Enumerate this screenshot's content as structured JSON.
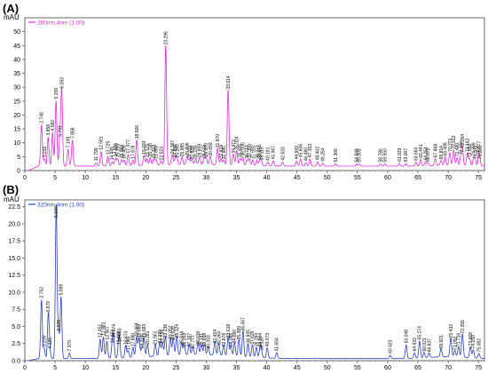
{
  "panel_labels": {
    "a": "(A)",
    "b": "(B)"
  },
  "chart_data": [
    {
      "type": "line",
      "panel": "(A)",
      "ylabel": "mAU",
      "legend": "280nm,4nm (1.00)",
      "color": "#e02ce0",
      "xlim": [
        0,
        76
      ],
      "ylim": [
        0,
        55
      ],
      "xticks": [
        0,
        5,
        10,
        15,
        20,
        25,
        30,
        35,
        40,
        45,
        50,
        55,
        60,
        65,
        70,
        75
      ],
      "yticks": [
        0,
        5,
        10,
        15,
        20,
        25,
        30,
        35,
        40,
        45,
        50
      ],
      "baseline": 1.6,
      "peaks": [
        {
          "t": 2.748,
          "h": 14.8,
          "label": "2.748"
        },
        {
          "t": 3.232,
          "h": 2.5,
          "label": "3.232"
        },
        {
          "t": 3.858,
          "h": 10.4,
          "label": "3.858"
        },
        {
          "t": 4.582,
          "h": 12.0,
          "label": "4.582"
        },
        {
          "t": 5.159,
          "h": 23.5,
          "label": "5.159"
        },
        {
          "t": 5.791,
          "h": 10.0,
          "label": "5.791"
        },
        {
          "t": 6.093,
          "h": 27.3,
          "label": "6.093"
        },
        {
          "t": 7.149,
          "h": 6.0,
          "label": "7.149"
        },
        {
          "t": 7.858,
          "h": 9.3,
          "label": "7.858"
        },
        {
          "t": 11.799,
          "h": 1.2,
          "label": "11.799"
        },
        {
          "t": 12.591,
          "h": 5.2,
          "label": "12.591"
        },
        {
          "t": 13.725,
          "h": 3.5,
          "label": "13.725"
        },
        {
          "t": 14.445,
          "h": 1.5,
          "label": "14.445"
        },
        {
          "t": 14.965,
          "h": 2.8,
          "label": "14.965"
        },
        {
          "t": 15.355,
          "h": 2.5,
          "label": "15.355"
        },
        {
          "t": 15.994,
          "h": 2.2,
          "label": "15.994"
        },
        {
          "t": 16.409,
          "h": 2.0,
          "label": "16.409"
        },
        {
          "t": 17.077,
          "h": 4.0,
          "label": "17.077"
        },
        {
          "t": 17.878,
          "h": 2.0,
          "label": "17.878"
        },
        {
          "t": 18.506,
          "h": 9.2,
          "label": "18.506"
        },
        {
          "t": 19.693,
          "h": 3.6,
          "label": "19.693"
        },
        {
          "t": 20.175,
          "h": 2.5,
          "label": "20.175"
        },
        {
          "t": 20.726,
          "h": 2.8,
          "label": "20.726"
        },
        {
          "t": 21.313,
          "h": 2.2,
          "label": "21.313"
        },
        {
          "t": 21.68,
          "h": 2.0,
          "label": "21.680"
        },
        {
          "t": 22.523,
          "h": 1.5,
          "label": "22.523"
        },
        {
          "t": 23.296,
          "h": 43.0,
          "label": "23.296"
        },
        {
          "t": 24.367,
          "h": 3.8,
          "label": "24.367"
        },
        {
          "t": 24.856,
          "h": 2.4,
          "label": "24.856"
        },
        {
          "t": 25.16,
          "h": 2.4,
          "label": "25.160"
        },
        {
          "t": 25.985,
          "h": 2.8,
          "label": "25.985"
        },
        {
          "t": 26.806,
          "h": 3.0,
          "label": "26.806"
        },
        {
          "t": 27.222,
          "h": 2.0,
          "label": "27.222"
        },
        {
          "t": 27.639,
          "h": 1.8,
          "label": "27.639"
        },
        {
          "t": 28.23,
          "h": 2.0,
          "label": "28.230"
        },
        {
          "t": 28.859,
          "h": 2.5,
          "label": "28.859"
        },
        {
          "t": 29.615,
          "h": 2.2,
          "label": "29.615"
        },
        {
          "t": 29.97,
          "h": 2.8,
          "label": "29.970"
        },
        {
          "t": 30.659,
          "h": 3.0,
          "label": "30.659"
        },
        {
          "t": 31.87,
          "h": 6.0,
          "label": "31.870"
        },
        {
          "t": 32.424,
          "h": 2.2,
          "label": "32.424"
        },
        {
          "t": 32.886,
          "h": 1.8,
          "label": "32.886"
        },
        {
          "t": 33.614,
          "h": 27.0,
          "label": "33.614"
        },
        {
          "t": 34.473,
          "h": 4.0,
          "label": "34.473"
        },
        {
          "t": 35.024,
          "h": 5.2,
          "label": "35.024"
        },
        {
          "t": 35.605,
          "h": 2.5,
          "label": "35.605"
        },
        {
          "t": 36.03,
          "h": 3.0,
          "label": "36.030"
        },
        {
          "t": 36.717,
          "h": 2.0,
          "label": "36.717"
        },
        {
          "t": 37.105,
          "h": 2.5,
          "label": "37.105"
        },
        {
          "t": 37.68,
          "h": 2.0,
          "label": "37.680"
        },
        {
          "t": 38.373,
          "h": 2.0,
          "label": "38.373"
        },
        {
          "t": 38.854,
          "h": 2.2,
          "label": "38.854"
        },
        {
          "t": 39.113,
          "h": 1.5,
          "label": "39.113"
        },
        {
          "t": 40.191,
          "h": 1.3,
          "label": "40.191"
        },
        {
          "t": 41.067,
          "h": 1.8,
          "label": "41.067"
        },
        {
          "t": 42.633,
          "h": 1.4,
          "label": "42.633"
        },
        {
          "t": 44.943,
          "h": 1.8,
          "label": "44.943"
        },
        {
          "t": 45.606,
          "h": 2.5,
          "label": "45.606"
        },
        {
          "t": 46.48,
          "h": 1.2,
          "label": "46.480"
        },
        {
          "t": 47.153,
          "h": 2.5,
          "label": "47.153"
        },
        {
          "t": 48.402,
          "h": 1.5,
          "label": "48.402"
        },
        {
          "t": 49.254,
          "h": 1.0,
          "label": "49.254"
        },
        {
          "t": 51.366,
          "h": 0.8,
          "label": "51.366"
        },
        {
          "t": 54.848,
          "h": 0.8,
          "label": "54.848"
        },
        {
          "t": 55.303,
          "h": 0.7,
          "label": "55.303"
        },
        {
          "t": 58.786,
          "h": 0.8,
          "label": "58.786"
        },
        {
          "t": 59.55,
          "h": 0.8,
          "label": "59.550"
        },
        {
          "t": 61.933,
          "h": 1.0,
          "label": "61.933"
        },
        {
          "t": 63.007,
          "h": 0.9,
          "label": "63.007"
        },
        {
          "t": 64.66,
          "h": 1.3,
          "label": "64.660"
        },
        {
          "t": 65.441,
          "h": 2.3,
          "label": "65.441"
        },
        {
          "t": 66.251,
          "h": 1.5,
          "label": "66.251"
        },
        {
          "t": 66.672,
          "h": 1.0,
          "label": "66.672"
        },
        {
          "t": 67.868,
          "h": 2.5,
          "label": "67.868"
        },
        {
          "t": 68.814,
          "h": 1.8,
          "label": "68.814"
        },
        {
          "t": 69.495,
          "h": 3.0,
          "label": "69.495"
        },
        {
          "t": 70.271,
          "h": 4.5,
          "label": "70.271"
        },
        {
          "t": 70.912,
          "h": 5.5,
          "label": "70.912"
        },
        {
          "t": 71.48,
          "h": 2.8,
          "label": "71.480"
        },
        {
          "t": 72.106,
          "h": 3.5,
          "label": "72.106"
        },
        {
          "t": 72.354,
          "h": 6.0,
          "label": "72.354"
        },
        {
          "t": 73.162,
          "h": 4.5,
          "label": "73.162"
        },
        {
          "t": 73.552,
          "h": 2.5,
          "label": "73.552"
        },
        {
          "t": 74.209,
          "h": 3.0,
          "label": "74.209"
        },
        {
          "t": 74.472,
          "h": 2.0,
          "label": "74.472"
        },
        {
          "t": 75.077,
          "h": 3.5,
          "label": "75.077"
        },
        {
          "t": 75.22,
          "h": 1.8,
          "label": "75.220"
        }
      ]
    },
    {
      "type": "line",
      "panel": "(B)",
      "ylabel": "mAU",
      "legend": "320nm,4nm (1.00)",
      "color": "#2a3fc8",
      "xlim": [
        0,
        76
      ],
      "ylim": [
        0,
        23.5
      ],
      "xticks": [
        0,
        5,
        10,
        15,
        20,
        25,
        30,
        35,
        40,
        45,
        50,
        55,
        60,
        65,
        70,
        75
      ],
      "yticks": [
        0.0,
        2.5,
        5.0,
        7.5,
        10.0,
        12.5,
        15.0,
        17.5,
        20.0,
        22.5
      ],
      "baseline": 0.3,
      "peaks": [
        {
          "t": 2.752,
          "h": 8.6,
          "label": "2.752"
        },
        {
          "t": 3.2,
          "h": 1.5,
          "label": "3.200"
        },
        {
          "t": 3.879,
          "h": 6.5,
          "label": "3.879"
        },
        {
          "t": 4.126,
          "h": 1.2,
          "label": "4.126"
        },
        {
          "t": 5.19,
          "h": 22.5,
          "label": "5.190"
        },
        {
          "t": 5.578,
          "h": 3.8,
          "label": "5.578"
        },
        {
          "t": 5.989,
          "h": 9.0,
          "label": "5.989"
        },
        {
          "t": 7.37,
          "h": 0.8,
          "label": "7.370"
        },
        {
          "t": 12.451,
          "h": 2.8,
          "label": "12.451"
        },
        {
          "t": 12.981,
          "h": 3.1,
          "label": "12.981"
        },
        {
          "t": 13.567,
          "h": 2.5,
          "label": "13.567"
        },
        {
          "t": 14.45,
          "h": 2.0,
          "label": "14.450"
        },
        {
          "t": 14.674,
          "h": 2.8,
          "label": "14.674"
        },
        {
          "t": 15.499,
          "h": 1.8,
          "label": "15.499"
        },
        {
          "t": 15.663,
          "h": 2.2,
          "label": "15.663"
        },
        {
          "t": 16.67,
          "h": 1.8,
          "label": "16.670"
        },
        {
          "t": 17.095,
          "h": 1.0,
          "label": "17.095"
        },
        {
          "t": 17.88,
          "h": 1.5,
          "label": "17.880"
        },
        {
          "t": 18.464,
          "h": 3.0,
          "label": "18.464"
        },
        {
          "t": 18.868,
          "h": 2.8,
          "label": "18.868"
        },
        {
          "t": 19.319,
          "h": 1.2,
          "label": "19.319"
        },
        {
          "t": 19.683,
          "h": 2.8,
          "label": "19.683"
        },
        {
          "t": 20.281,
          "h": 1.8,
          "label": "20.281"
        },
        {
          "t": 21.561,
          "h": 1.8,
          "label": "21.561"
        },
        {
          "t": 22.299,
          "h": 2.0,
          "label": "22.299"
        },
        {
          "t": 22.734,
          "h": 2.0,
          "label": "22.734"
        },
        {
          "t": 23.236,
          "h": 2.8,
          "label": "23.236"
        },
        {
          "t": 24.052,
          "h": 2.6,
          "label": "24.052"
        },
        {
          "t": 24.528,
          "h": 2.5,
          "label": "24.528"
        },
        {
          "t": 25.124,
          "h": 2.8,
          "label": "25.124"
        },
        {
          "t": 25.916,
          "h": 1.8,
          "label": "25.916"
        },
        {
          "t": 26.353,
          "h": 1.5,
          "label": "26.353"
        },
        {
          "t": 27.167,
          "h": 1.5,
          "label": "27.167"
        },
        {
          "t": 27.777,
          "h": 1.2,
          "label": "27.777"
        },
        {
          "t": 28.63,
          "h": 1.8,
          "label": "28.630"
        },
        {
          "t": 29.191,
          "h": 1.5,
          "label": "29.191"
        },
        {
          "t": 29.698,
          "h": 1.5,
          "label": "29.698"
        },
        {
          "t": 30.318,
          "h": 1.2,
          "label": "30.318"
        },
        {
          "t": 31.424,
          "h": 2.0,
          "label": "31.424"
        },
        {
          "t": 32.06,
          "h": 1.8,
          "label": "32.060"
        },
        {
          "t": 32.878,
          "h": 1.5,
          "label": "32.878"
        },
        {
          "t": 33.618,
          "h": 2.8,
          "label": "33.618"
        },
        {
          "t": 34.086,
          "h": 1.5,
          "label": "34.086"
        },
        {
          "t": 34.68,
          "h": 2.0,
          "label": "34.680"
        },
        {
          "t": 35.389,
          "h": 2.5,
          "label": "35.389"
        },
        {
          "t": 36.067,
          "h": 3.8,
          "label": "36.067"
        },
        {
          "t": 36.905,
          "h": 2.0,
          "label": "36.905"
        },
        {
          "t": 37.625,
          "h": 1.8,
          "label": "37.625"
        },
        {
          "t": 38.284,
          "h": 1.5,
          "label": "38.284"
        },
        {
          "t": 38.904,
          "h": 1.5,
          "label": "38.904"
        },
        {
          "t": 39.127,
          "h": 1.0,
          "label": "39.127"
        },
        {
          "t": 40.073,
          "h": 1.5,
          "label": "40.073"
        },
        {
          "t": 41.654,
          "h": 0.8,
          "label": "41.654"
        },
        {
          "t": 60.423,
          "h": 0.5,
          "label": "60.423"
        },
        {
          "t": 63.048,
          "h": 2.0,
          "label": "63.048"
        },
        {
          "t": 64.433,
          "h": 0.8,
          "label": "64.433"
        },
        {
          "t": 65.274,
          "h": 2.5,
          "label": "65.274"
        },
        {
          "t": 66.021,
          "h": 0.8,
          "label": "66.021"
        },
        {
          "t": 66.837,
          "h": 0.7,
          "label": "66.837"
        },
        {
          "t": 68.821,
          "h": 1.2,
          "label": "68.821"
        },
        {
          "t": 70.432,
          "h": 2.8,
          "label": "70.432"
        },
        {
          "t": 71.092,
          "h": 1.0,
          "label": "71.092"
        },
        {
          "t": 71.716,
          "h": 1.5,
          "label": "71.716"
        },
        {
          "t": 72.355,
          "h": 3.4,
          "label": "72.355"
        },
        {
          "t": 73.668,
          "h": 1.6,
          "label": "73.668"
        },
        {
          "t": 74.15,
          "h": 1.2,
          "label": "74.150"
        },
        {
          "t": 75.082,
          "h": 0.7,
          "label": "75.082"
        }
      ]
    }
  ]
}
